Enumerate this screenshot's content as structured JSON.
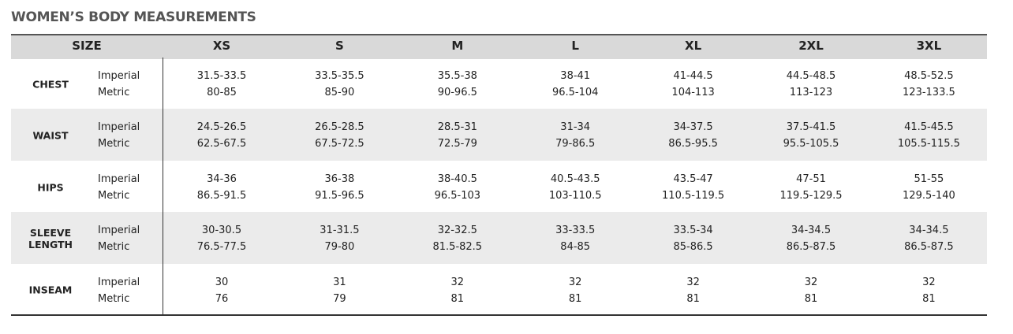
{
  "title": "WOMEN’S BODY MEASUREMENTS",
  "table": {
    "header": [
      "SIZE",
      "XS",
      "S",
      "M",
      "L",
      "XL",
      "2XL",
      "3XL"
    ],
    "rows": [
      {
        "label": "CHEST",
        "units": [
          "Imperial",
          "Metric"
        ],
        "values": [
          [
            "31.5-33.5",
            "80-85"
          ],
          [
            "33.5-35.5",
            "85-90"
          ],
          [
            "35.5-38",
            "90-96.5"
          ],
          [
            "38-41",
            "96.5-104"
          ],
          [
            "41-44.5",
            "104-113"
          ],
          [
            "44.5-48.5",
            "113-123"
          ],
          [
            "48.5-52.5",
            "123-133.5"
          ]
        ]
      },
      {
        "label": "WAIST",
        "units": [
          "Imperial",
          "Metric"
        ],
        "values": [
          [
            "24.5-26.5",
            "62.5-67.5"
          ],
          [
            "26.5-28.5",
            "67.5-72.5"
          ],
          [
            "28.5-31",
            "72.5-79"
          ],
          [
            "31-34",
            "79-86.5"
          ],
          [
            "34-37.5",
            "86.5-95.5"
          ],
          [
            "37.5-41.5",
            "95.5-105.5"
          ],
          [
            "41.5-45.5",
            "105.5-115.5"
          ]
        ]
      },
      {
        "label": "HIPS",
        "units": [
          "Imperial",
          "Metric"
        ],
        "values": [
          [
            "34-36",
            "86.5-91.5"
          ],
          [
            "36-38",
            "91.5-96.5"
          ],
          [
            "38-40.5",
            "96.5-103"
          ],
          [
            "40.5-43.5",
            "103-110.5"
          ],
          [
            "43.5-47",
            "110.5-119.5"
          ],
          [
            "47-51",
            "119.5-129.5"
          ],
          [
            "51-55",
            "129.5-140"
          ]
        ]
      },
      {
        "label": "SLEEVE LENGTH",
        "units": [
          "Imperial",
          "Metric"
        ],
        "values": [
          [
            "30-30.5",
            "76.5-77.5"
          ],
          [
            "31-31.5",
            "79-80"
          ],
          [
            "32-32.5",
            "81.5-82.5"
          ],
          [
            "33-33.5",
            "84-85"
          ],
          [
            "33.5-34",
            "85-86.5"
          ],
          [
            "34-34.5",
            "86.5-87.5"
          ],
          [
            "34-34.5",
            "86.5-87.5"
          ]
        ]
      },
      {
        "label": "INSEAM",
        "units": [
          "Imperial",
          "Metric"
        ],
        "values": [
          [
            "30",
            "76"
          ],
          [
            "31",
            "79"
          ],
          [
            "32",
            "81"
          ],
          [
            "32",
            "81"
          ],
          [
            "32",
            "81"
          ],
          [
            "32",
            "81"
          ],
          [
            "32",
            "81"
          ]
        ]
      }
    ]
  }
}
